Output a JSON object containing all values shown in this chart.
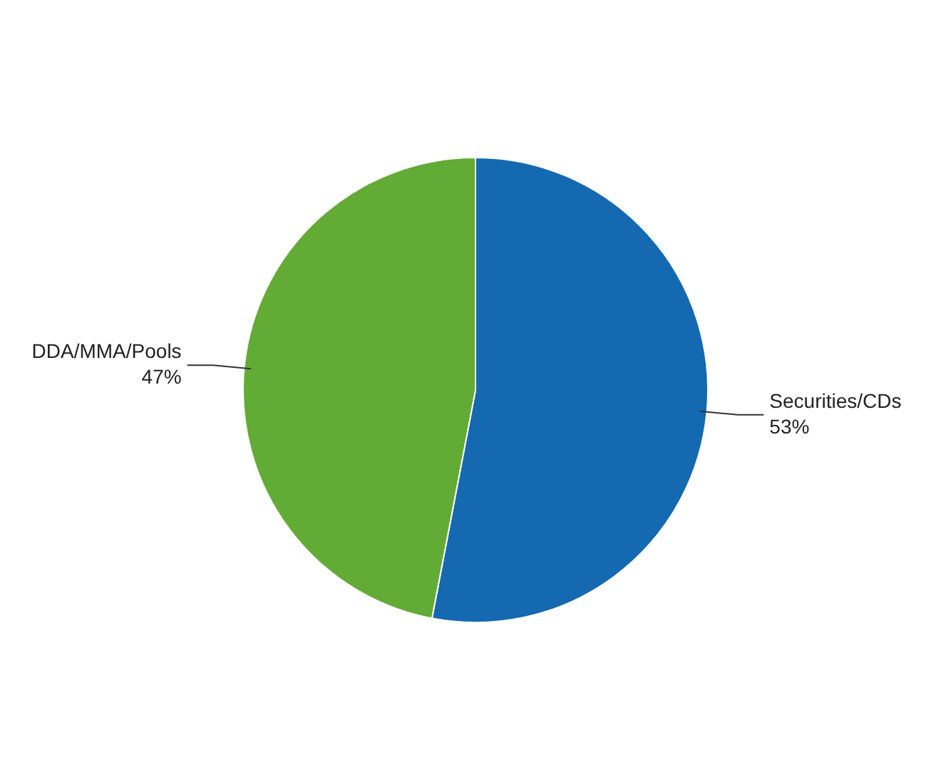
{
  "chart_data": {
    "type": "pie",
    "categories": [
      "Securities/CDs",
      "DDA/MMA/Pools"
    ],
    "values": [
      53,
      47
    ],
    "value_labels": [
      "53%",
      "47%"
    ],
    "colors": [
      "#1469b0",
      "#62ab35"
    ],
    "legend": false
  }
}
